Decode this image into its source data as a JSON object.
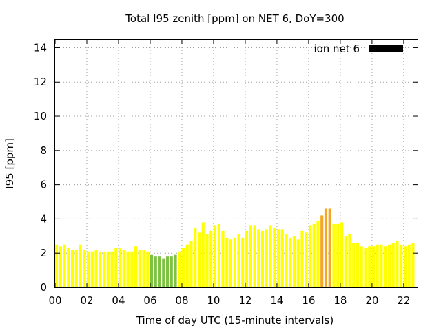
{
  "chart_data": {
    "type": "bar",
    "title": "Total I95 zenith [ppm] on NET 6, DoY=300",
    "xlabel": "Time of day UTC (15-minute intervals)",
    "ylabel": "I95 [ppm]",
    "xlim": [
      0,
      22.875
    ],
    "ylim": [
      0,
      14.5
    ],
    "x_ticks": [
      "00",
      "02",
      "04",
      "06",
      "08",
      "10",
      "12",
      "14",
      "16",
      "18",
      "20",
      "22"
    ],
    "y_ticks": [
      "0",
      "2",
      "4",
      "6",
      "8",
      "10",
      "12",
      "14"
    ],
    "grid": true,
    "legend": {
      "label": "ion net 6",
      "position": "top-right",
      "color": "#000000"
    },
    "interval_hours": 0.25,
    "colors": {
      "low": "#7dc242",
      "normal": "#ffff00",
      "elevated": "#f5a623"
    },
    "series": [
      {
        "values": [
          2.5,
          2.4,
          2.5,
          2.3,
          2.2,
          2.2,
          2.5,
          2.2,
          2.1,
          2.1,
          2.2,
          2.1,
          2.1,
          2.1,
          2.1,
          2.3,
          2.3,
          2.2,
          2.1,
          2.1,
          2.4,
          2.2,
          2.2,
          2.1,
          1.9,
          1.8,
          1.8,
          1.7,
          1.8,
          1.8,
          1.9,
          2.1,
          2.3,
          2.5,
          2.7,
          3.5,
          3.2,
          3.8,
          3.1,
          3.3,
          3.6,
          3.7,
          3.3,
          2.9,
          2.8,
          2.9,
          3.1,
          2.9,
          3.3,
          3.6,
          3.6,
          3.4,
          3.3,
          3.4,
          3.6,
          3.5,
          3.4,
          3.4,
          3.1,
          2.9,
          3.0,
          2.8,
          3.3,
          3.2,
          3.6,
          3.7,
          3.9,
          4.2,
          4.6,
          4.6,
          3.7,
          3.7,
          3.8,
          3.0,
          3.1,
          2.6,
          2.6,
          2.4,
          2.3,
          2.4,
          2.4,
          2.5,
          2.5,
          2.4,
          2.5,
          2.6,
          2.7,
          2.5,
          2.4,
          2.5,
          2.6
        ],
        "colors": [
          "normal",
          "normal",
          "normal",
          "normal",
          "normal",
          "normal",
          "normal",
          "normal",
          "normal",
          "normal",
          "normal",
          "normal",
          "normal",
          "normal",
          "normal",
          "normal",
          "normal",
          "normal",
          "normal",
          "normal",
          "normal",
          "normal",
          "normal",
          "normal",
          "low",
          "low",
          "low",
          "low",
          "low",
          "low",
          "low",
          "normal",
          "normal",
          "normal",
          "normal",
          "normal",
          "normal",
          "normal",
          "normal",
          "normal",
          "normal",
          "normal",
          "normal",
          "normal",
          "normal",
          "normal",
          "normal",
          "normal",
          "normal",
          "normal",
          "normal",
          "normal",
          "normal",
          "normal",
          "normal",
          "normal",
          "normal",
          "normal",
          "normal",
          "normal",
          "normal",
          "normal",
          "normal",
          "normal",
          "normal",
          "normal",
          "normal",
          "elevated",
          "elevated",
          "elevated",
          "normal",
          "normal",
          "normal",
          "normal",
          "normal",
          "normal",
          "normal",
          "normal",
          "normal",
          "normal",
          "normal",
          "normal",
          "normal",
          "normal",
          "normal",
          "normal",
          "normal",
          "normal",
          "normal",
          "normal",
          "normal"
        ]
      }
    ]
  }
}
